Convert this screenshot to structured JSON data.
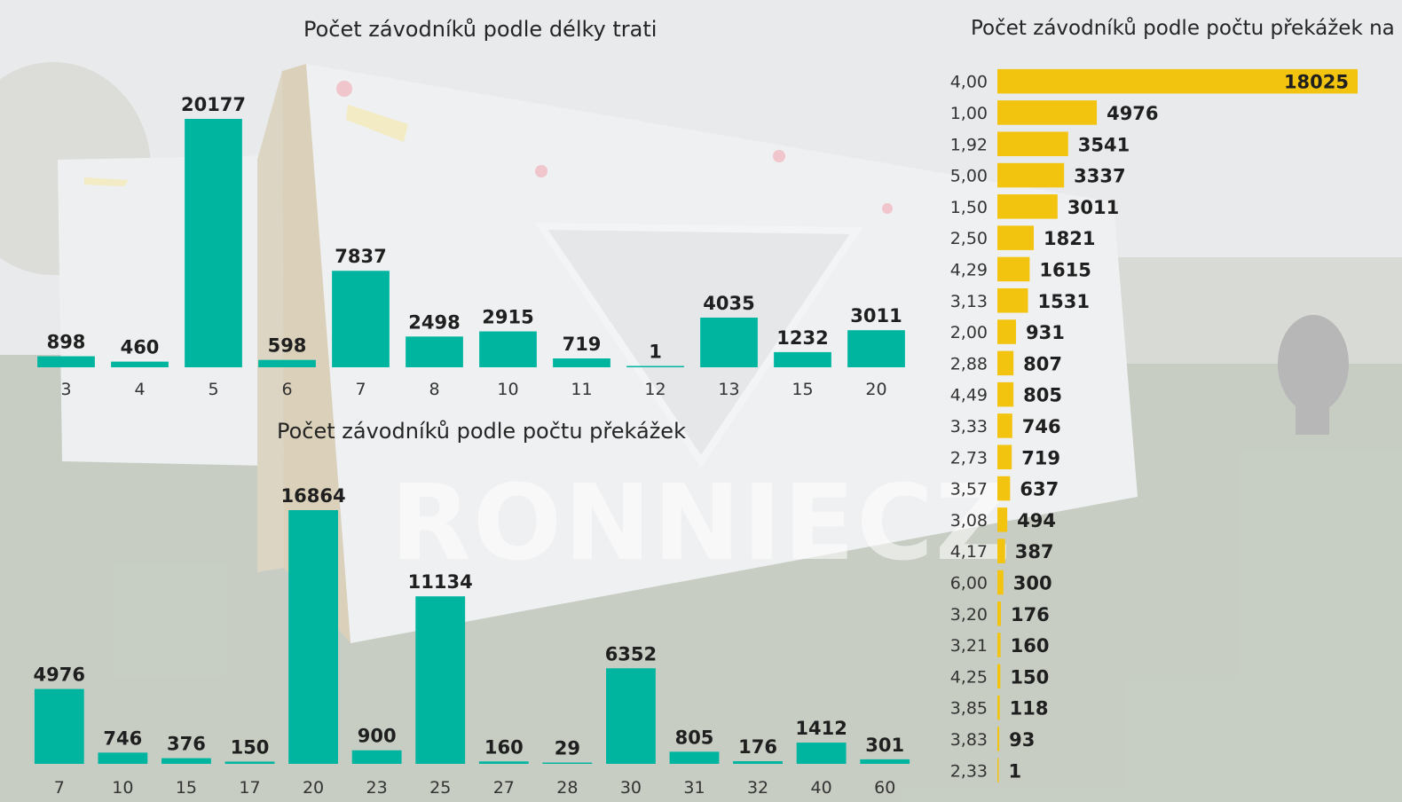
{
  "watermark": "RONNIECZ",
  "colors": {
    "bar_teal": "#00b5a0",
    "bar_yellow": "#f2c40f",
    "label_text": "#1f1f1f",
    "tick_text": "#333333"
  },
  "chart_data": [
    {
      "type": "bar",
      "title": "Počet závodníků podle délky trati",
      "categories": [
        "3",
        "4",
        "5",
        "6",
        "7",
        "8",
        "10",
        "11",
        "12",
        "13",
        "15",
        "20"
      ],
      "values": [
        898,
        460,
        20177,
        598,
        7837,
        2498,
        2915,
        719,
        1,
        4035,
        1232,
        3011
      ],
      "xlabel": "",
      "ylabel": "",
      "grid": false,
      "legend": "none"
    },
    {
      "type": "bar",
      "title": "Počet závodníků podle počtu překážek",
      "categories": [
        "7",
        "10",
        "15",
        "17",
        "20",
        "23",
        "25",
        "27",
        "28",
        "30",
        "31",
        "32",
        "40",
        "60"
      ],
      "values": [
        4976,
        746,
        376,
        150,
        16864,
        900,
        11134,
        160,
        29,
        6352,
        805,
        176,
        1412,
        301
      ],
      "xlabel": "",
      "ylabel": "",
      "grid": false,
      "legend": "none"
    },
    {
      "type": "bar",
      "orientation": "horizontal",
      "title": "Počet závodníků podle počtu překážek na km",
      "categories": [
        "4,00",
        "1,00",
        "1,92",
        "5,00",
        "1,50",
        "2,50",
        "4,29",
        "3,13",
        "2,00",
        "2,88",
        "4,49",
        "3,33",
        "2,73",
        "3,57",
        "3,08",
        "4,17",
        "6,00",
        "3,20",
        "3,21",
        "4,25",
        "3,85",
        "3,83",
        "2,33"
      ],
      "values": [
        18025,
        4976,
        3541,
        3337,
        3011,
        1821,
        1615,
        1531,
        931,
        807,
        805,
        746,
        719,
        637,
        494,
        387,
        300,
        176,
        160,
        150,
        118,
        93,
        1
      ],
      "xlabel": "",
      "ylabel": "",
      "grid": false,
      "legend": "none"
    }
  ]
}
